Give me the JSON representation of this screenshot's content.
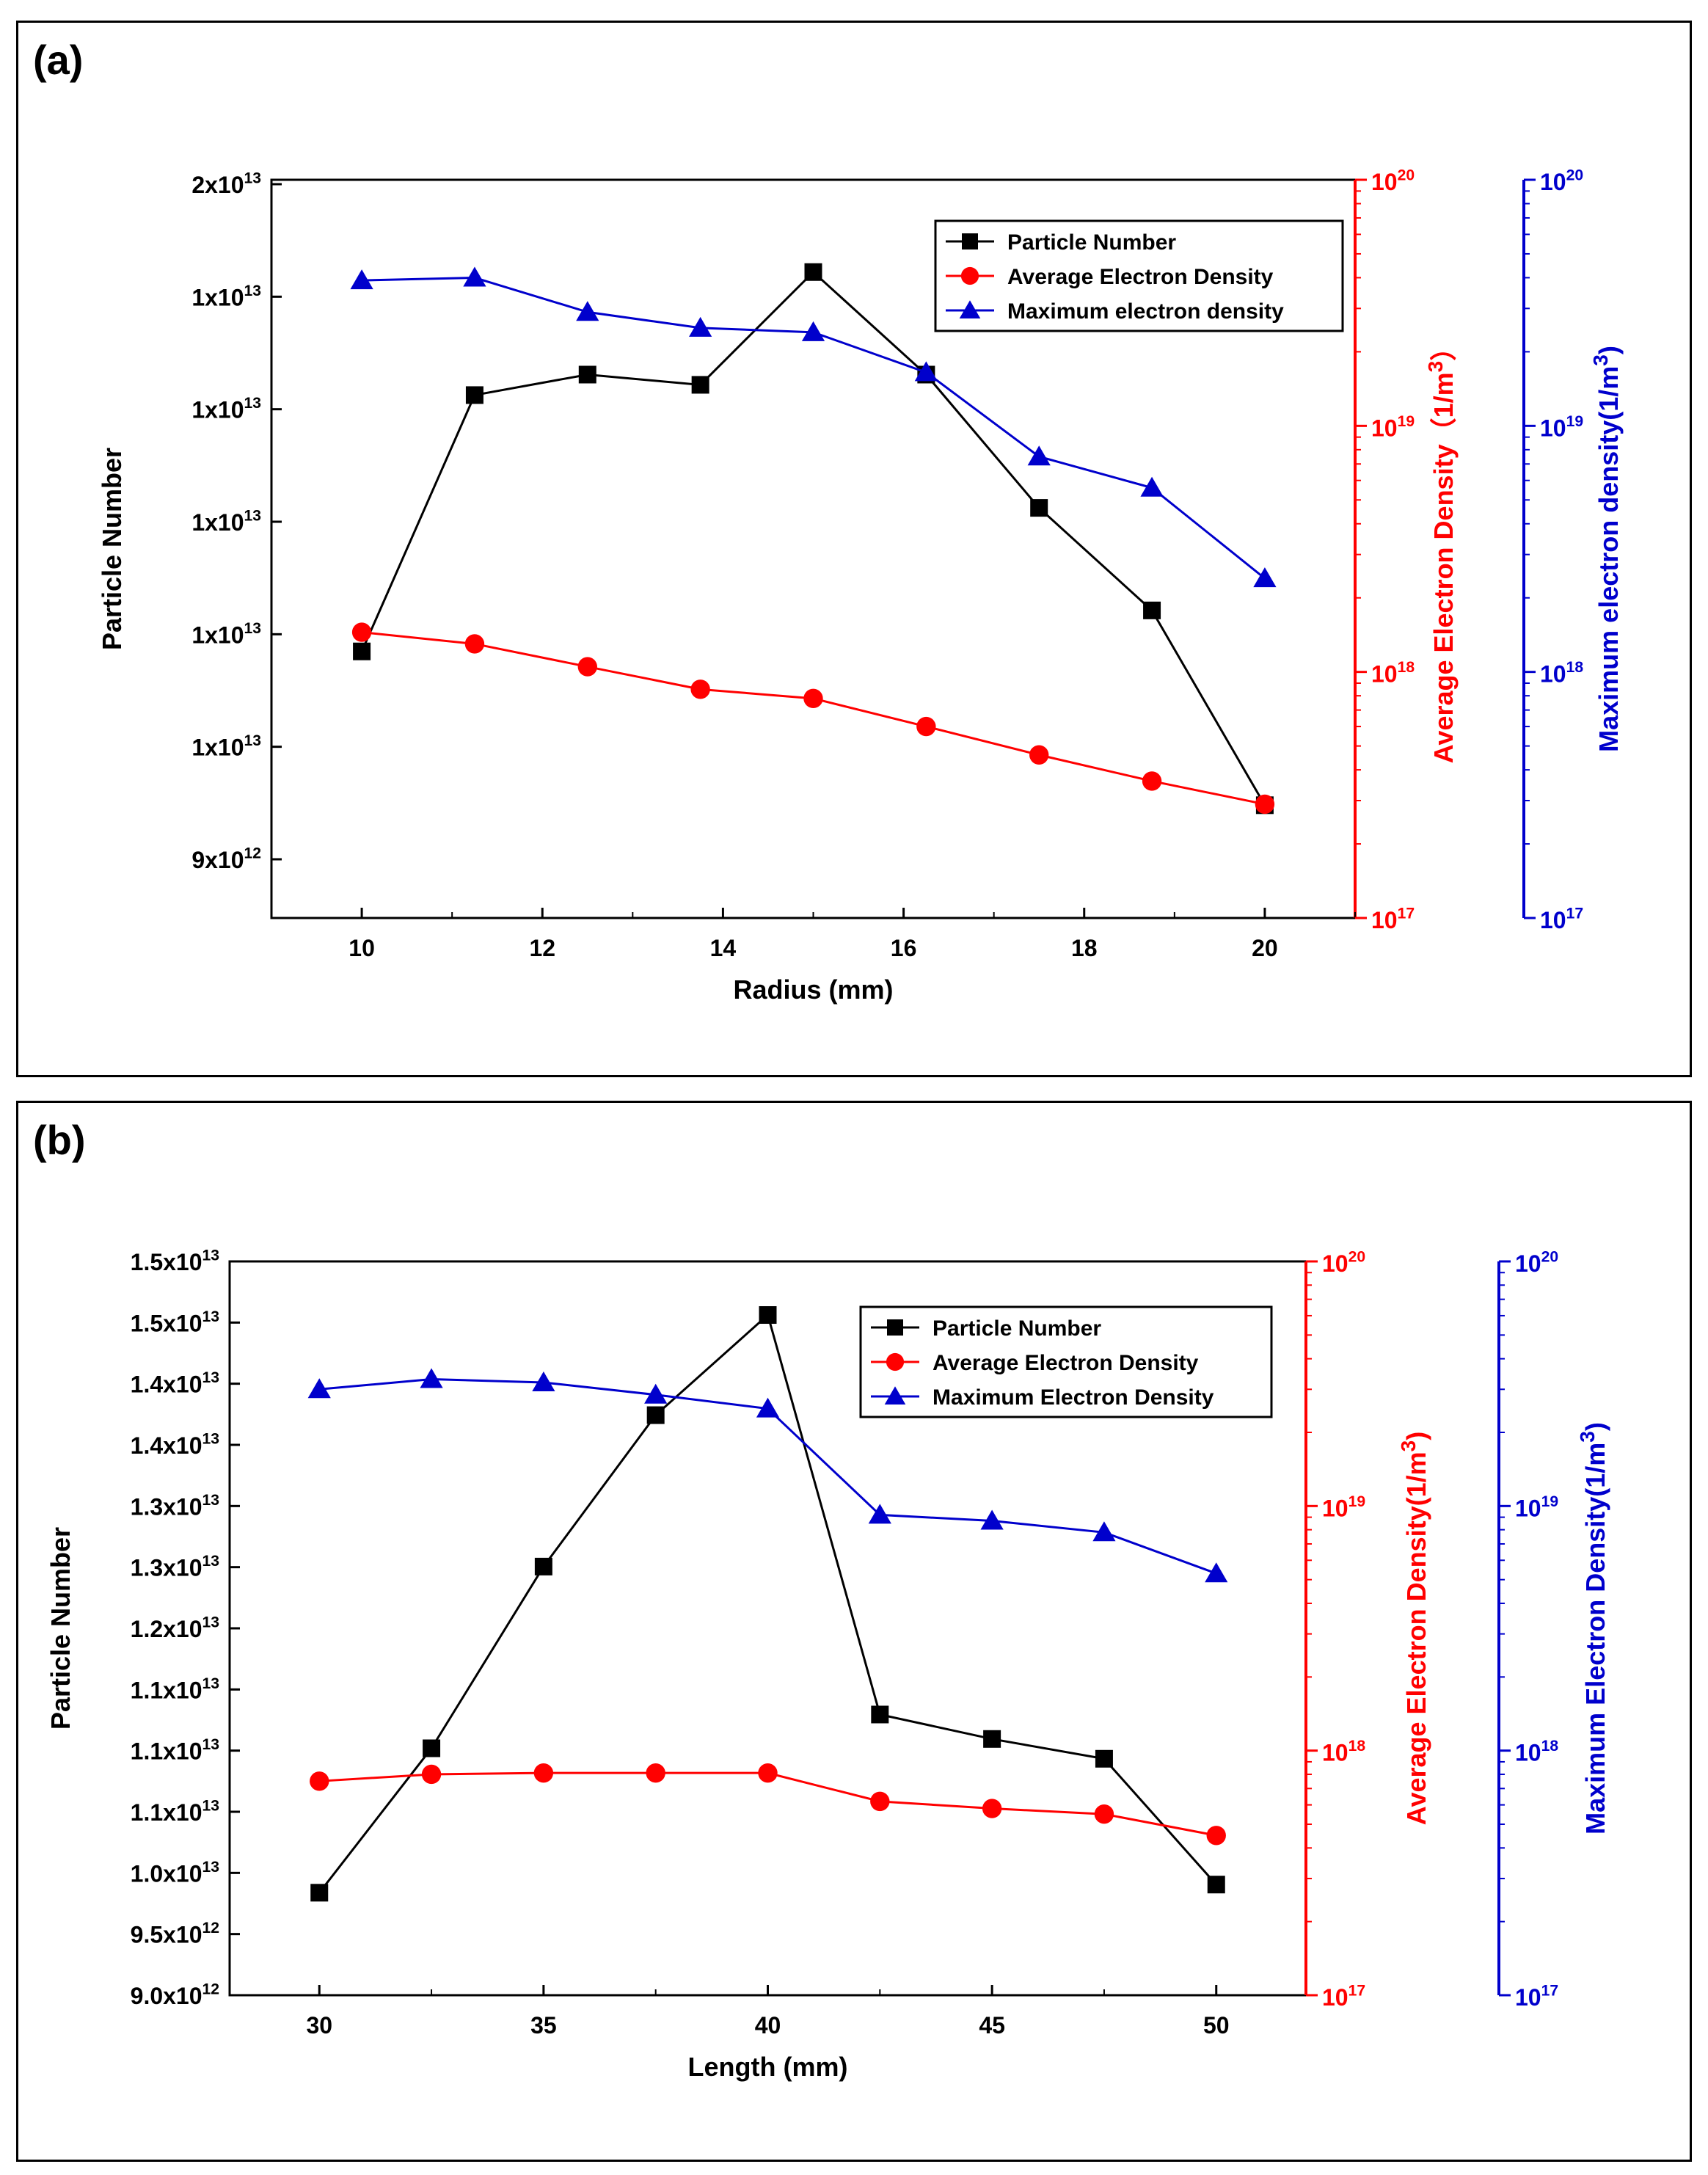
{
  "panels": [
    {
      "letter": "(a)",
      "colors": {
        "particle": "#000000",
        "avg": "#ff0000",
        "max": "#0000cc"
      },
      "chart_data": {
        "type": "line",
        "xlabel": "Radius (mm)",
        "xlim": [
          9,
          21
        ],
        "xticks": [
          "10",
          "12",
          "14",
          "16",
          "18",
          "20"
        ],
        "x": [
          10,
          11.25,
          12.5,
          13.75,
          15,
          16.25,
          17.5,
          18.75,
          20
        ],
        "left_axis": {
          "label": "Particle Number",
          "ticks": [
            {
              "mant": "2x10",
              "exp": "13"
            },
            {
              "mant": "1x10",
              "exp": "13"
            },
            {
              "mant": "1x10",
              "exp": "13"
            },
            {
              "mant": "1x10",
              "exp": "13"
            },
            {
              "mant": "1x10",
              "exp": "13"
            },
            {
              "mant": "1x10",
              "exp": "13"
            },
            {
              "mant": "9x10",
              "exp": "12"
            }
          ]
        },
        "right1_axis": {
          "label": "Average Electron Density（1/m³）",
          "scale": "log",
          "lim": [
            1e+17,
            1e+20
          ],
          "ticks": [
            {
              "base": "10",
              "exp": "20"
            },
            {
              "base": "10",
              "exp": "19"
            },
            {
              "base": "10",
              "exp": "18"
            },
            {
              "base": "10",
              "exp": "17"
            }
          ]
        },
        "right2_axis": {
          "label": "Maximum electron density(1/m³)",
          "scale": "log",
          "lim": [
            1e+17,
            1e+20
          ],
          "ticks": [
            {
              "base": "10",
              "exp": "20"
            },
            {
              "base": "10",
              "exp": "19"
            },
            {
              "base": "10",
              "exp": "18"
            },
            {
              "base": "10",
              "exp": "17"
            }
          ]
        },
        "series": [
          {
            "name": "Particle Number",
            "axis": "left",
            "marker": "square",
            "y": [
              9660000000000.0,
              9910000000000.0,
              9930000000000.0,
              9920000000000.0,
              10030000000000.0,
              9930000000000.0,
              9800000000000.0,
              9700000000000.0,
              9510000000000.0
            ]
          },
          {
            "name": "Average Electron Density",
            "axis": "right1",
            "marker": "circle",
            "y": [
              1.45e+18,
              1.3e+18,
              1.05e+18,
              8.5e+17,
              7.8e+17,
              6e+17,
              4.6e+17,
              3.6e+17,
              2.9e+17
            ]
          },
          {
            "name": "Maximum electron density",
            "axis": "right2",
            "marker": "triangle",
            "y": [
              3.9e+19,
              4e+19,
              2.9e+19,
              2.5e+19,
              2.4e+19,
              1.65e+19,
              7.5e+18,
              5.6e+18,
              2.4e+18
            ]
          }
        ],
        "legend": "top-right"
      }
    },
    {
      "letter": "(b)",
      "colors": {
        "particle": "#000000",
        "avg": "#ff0000",
        "max": "#0000cc"
      },
      "chart_data": {
        "type": "line",
        "xlabel": "Length (mm)",
        "xlim": [
          28,
          52
        ],
        "xticks": [
          "30",
          "35",
          "40",
          "45",
          "50"
        ],
        "x": [
          30,
          32.5,
          35,
          37.5,
          40,
          42.5,
          45,
          47.5,
          50
        ],
        "left_axis": {
          "label": "Particle Number",
          "ticks": [
            {
              "mant": "1.5x10",
              "exp": "13"
            },
            {
              "mant": "1.5x10",
              "exp": "13"
            },
            {
              "mant": "1.4x10",
              "exp": "13"
            },
            {
              "mant": "1.4x10",
              "exp": "13"
            },
            {
              "mant": "1.3x10",
              "exp": "13"
            },
            {
              "mant": "1.3x10",
              "exp": "13"
            },
            {
              "mant": "1.2x10",
              "exp": "13"
            },
            {
              "mant": "1.1x10",
              "exp": "13"
            },
            {
              "mant": "1.1x10",
              "exp": "13"
            },
            {
              "mant": "1.1x10",
              "exp": "13"
            },
            {
              "mant": "1.0x10",
              "exp": "13"
            },
            {
              "mant": "9.5x10",
              "exp": "12"
            },
            {
              "mant": "9.0x10",
              "exp": "12"
            }
          ]
        },
        "right1_axis": {
          "label": "Average Electron Density(1/m³)",
          "scale": "log",
          "lim": [
            1e+17,
            1e+20
          ],
          "ticks": [
            {
              "base": "10",
              "exp": "20"
            },
            {
              "base": "10",
              "exp": "19"
            },
            {
              "base": "10",
              "exp": "18"
            },
            {
              "base": "10",
              "exp": "17"
            }
          ]
        },
        "right2_axis": {
          "label": "Maximum Electron Density(1/m³)",
          "scale": "log",
          "lim": [
            1e+17,
            1e+20
          ],
          "ticks": [
            {
              "base": "10",
              "exp": "20"
            },
            {
              "base": "10",
              "exp": "19"
            },
            {
              "base": "10",
              "exp": "18"
            },
            {
              "base": "10",
              "exp": "17"
            }
          ]
        },
        "series": [
          {
            "name": "Particle Number",
            "axis": "left",
            "marker": "square",
            "y": [
              9880000000000.0,
              11120000000000.0,
              12680000000000.0,
              13980000000000.0,
              14840000000000.0,
              11410000000000.0,
              11200000000000.0,
              11030000000000.0,
              9950000000000.0
            ]
          },
          {
            "name": "Average Electron Density",
            "axis": "right1",
            "marker": "circle",
            "y": [
              7.5e+17,
              8e+17,
              8.1e+17,
              8.1e+17,
              8.1e+17,
              6.2e+17,
              5.8e+17,
              5.5e+17,
              4.5e+17
            ]
          },
          {
            "name": "Maximum Electron Density",
            "axis": "right2",
            "marker": "triangle",
            "y": [
              3e+19,
              3.3e+19,
              3.2e+19,
              2.85e+19,
              2.5e+19,
              9.2e+18,
              8.7e+18,
              7.8e+18,
              5.3e+18
            ]
          }
        ],
        "legend": "top-right"
      }
    }
  ]
}
